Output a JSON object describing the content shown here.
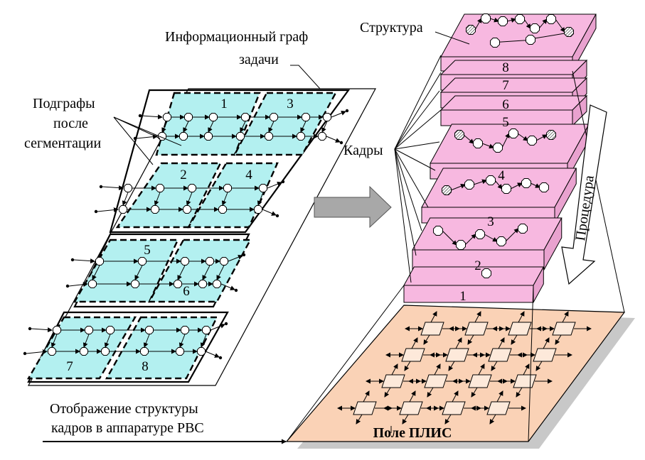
{
  "labels": {
    "info_graph_line1": "Информационный граф",
    "info_graph_line2": "задачи",
    "subgraphs_line1": "Подграфы",
    "subgraphs_line2": "после",
    "subgraphs_line3": "сегментации",
    "structure": "Структура",
    "frames": "Кадры",
    "procedure": "Процедура",
    "mapping_line1": "Отображение структуры",
    "mapping_line2": "кадров в аппаратуре РВС",
    "fpga_field": "Поле ПЛИС"
  },
  "segments": [
    "1",
    "2",
    "3",
    "4",
    "5",
    "6",
    "7",
    "8"
  ],
  "frame_numbers": [
    "1",
    "2",
    "3",
    "4",
    "5",
    "6",
    "7",
    "8"
  ],
  "colors": {
    "segment_fill": "#b3f0f0",
    "frame_fill": "#f7b8e0",
    "fpga_fill": "#fad2b6",
    "shadow": "#c8c8c8"
  }
}
